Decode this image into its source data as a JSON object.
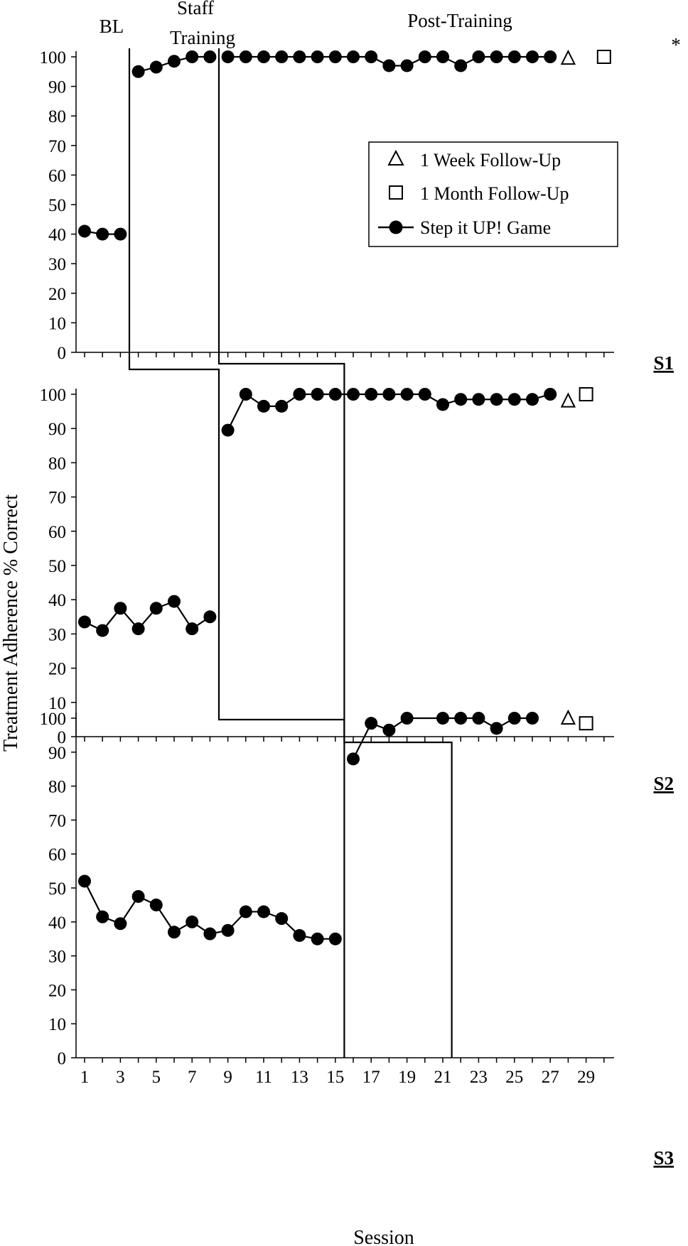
{
  "chart_data": {
    "type": "line",
    "ylabel": "Treatment Adherence % Correct",
    "xlabel": "Session",
    "ylim": [
      0,
      100
    ],
    "yticks": [
      0,
      10,
      20,
      30,
      40,
      50,
      60,
      70,
      80,
      90,
      100
    ],
    "xticks": [
      1,
      3,
      5,
      7,
      9,
      11,
      13,
      15,
      17,
      19,
      21,
      23,
      25,
      27,
      29
    ],
    "phase_labels": {
      "baseline": "BL",
      "training_line1": "Staff",
      "training_line2": "Training",
      "post": "Post-Training"
    },
    "legend": {
      "week": "1 Week Follow-Up",
      "month": "1 Month Follow-Up",
      "game": "Step it UP! Game"
    },
    "panels": [
      {
        "label": "S1",
        "series": [
          {
            "x": [
              1,
              2,
              3
            ],
            "y": [
              41,
              40,
              40
            ]
          },
          {
            "x": [
              4,
              5,
              6,
              7,
              8
            ],
            "y": [
              95,
              96.5,
              98.5,
              100,
              100
            ]
          },
          {
            "x": [
              9,
              10,
              11,
              12,
              13,
              14,
              15,
              16,
              17,
              18,
              19,
              20,
              21,
              22,
              23,
              24,
              25,
              26,
              27
            ],
            "y": [
              100,
              100,
              100,
              100,
              100,
              100,
              100,
              100,
              100,
              97,
              97,
              100,
              100,
              97,
              100,
              100,
              100,
              100,
              100
            ]
          }
        ],
        "week_followup": {
          "x": 28,
          "y": 99.5
        },
        "month_followup": {
          "x": 30,
          "y": 100
        },
        "annotation": "*",
        "phase_changes": [
          3.5,
          8.5
        ]
      },
      {
        "label": "S2",
        "series": [
          {
            "x": [
              1,
              2,
              3,
              4,
              5,
              6,
              7,
              8
            ],
            "y": [
              33.5,
              31,
              37.5,
              31.5,
              37.5,
              39.5,
              31.5,
              35
            ]
          },
          {
            "x": [
              9,
              10,
              11,
              12,
              13,
              14,
              15,
              16,
              17,
              18,
              19,
              20,
              21,
              22,
              23,
              24,
              25,
              26,
              27
            ],
            "y": [
              89.5,
              100,
              96.5,
              96.5,
              100,
              100,
              100,
              100,
              100,
              100,
              100,
              100,
              97,
              98.5,
              98.5,
              98.5,
              98.5,
              98.5,
              100
            ]
          }
        ],
        "week_followup": {
          "x": 28,
          "y": 98
        },
        "month_followup": {
          "x": 29,
          "y": 100
        },
        "phase_changes": [
          8.5,
          15.5
        ]
      },
      {
        "label": "S3",
        "series": [
          {
            "x": [
              1,
              2,
              3,
              4,
              5,
              6,
              7,
              8,
              9,
              10,
              11,
              12,
              13,
              14,
              15
            ],
            "y": [
              52,
              41.5,
              39.5,
              47.5,
              45,
              37,
              40,
              36.5,
              37.5,
              43,
              43,
              41,
              36,
              35,
              35
            ]
          },
          {
            "x": [
              16,
              17,
              18,
              19,
              21,
              22,
              23,
              24,
              25,
              26
            ],
            "y": [
              88,
              98.5,
              96.5,
              100,
              100,
              100,
              100,
              97,
              100,
              100
            ]
          }
        ],
        "week_followup": {
          "x": 28,
          "y": 100
        },
        "month_followup": {
          "x": 29,
          "y": 98.5
        },
        "phase_changes": [
          15.5,
          21.5
        ]
      }
    ]
  }
}
